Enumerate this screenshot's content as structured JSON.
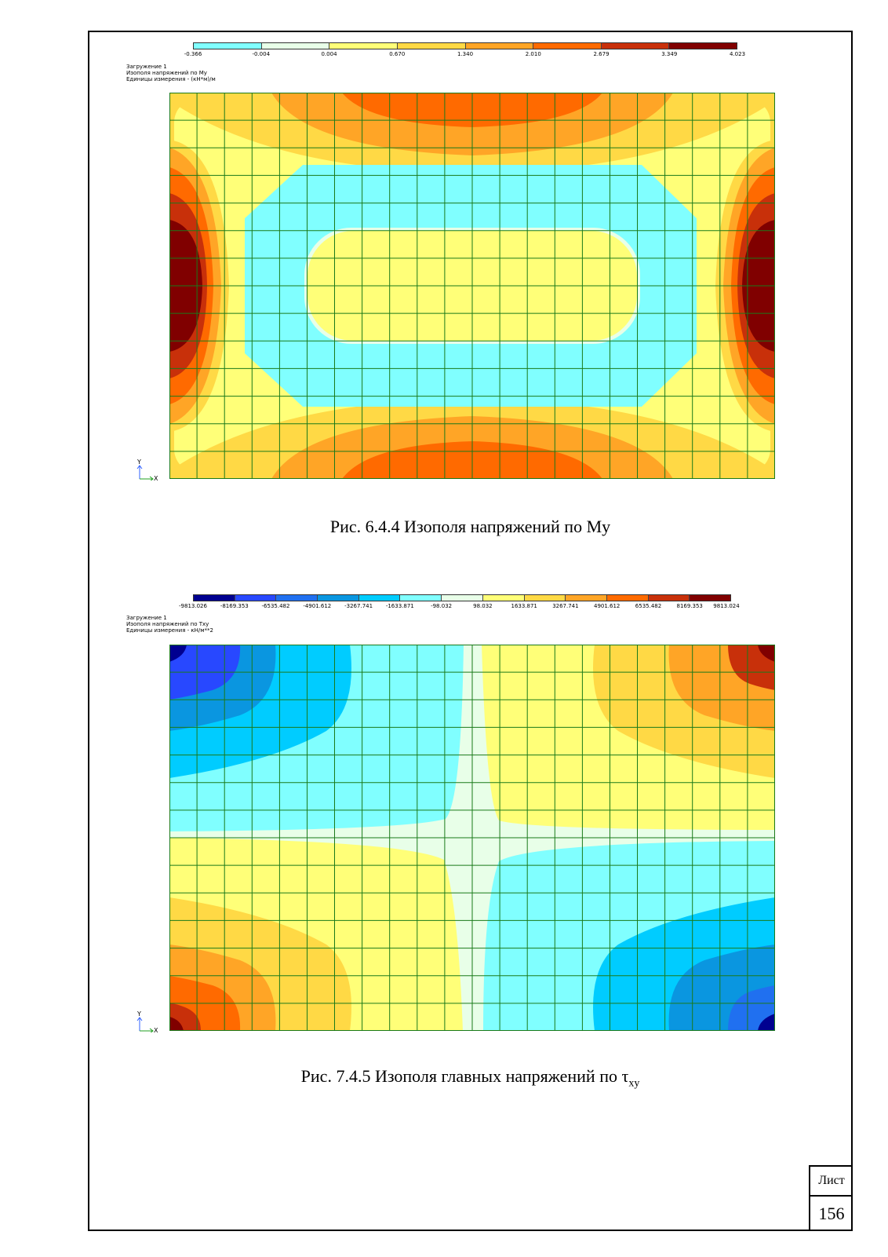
{
  "figure1": {
    "legend_ticks": [
      "-0.366",
      "-0.004",
      "0.004",
      "0.670",
      "1.340",
      "2.010",
      "2.679",
      "3.349",
      "4.023"
    ],
    "legend_colors": [
      "#80ffff",
      "#e8ffe8",
      "#ffff78",
      "#ffd945",
      "#ffa526",
      "#ff6a00",
      "#c8300a",
      "#800000"
    ],
    "info": [
      "Загружение 1",
      "Изополя напряжений по My",
      "Единицы измерения - (кН*м)/м"
    ],
    "axis_y": "Y",
    "axis_x": "X",
    "caption": "Рис. 6.4.4 Изополя напряжений по My"
  },
  "figure2": {
    "legend_ticks": [
      "-9813.026",
      "-8169.353",
      "-6535.482",
      "-4901.612",
      "-3267.741",
      "-1633.871",
      "-98.032",
      "98.032",
      "1633.871",
      "3267.741",
      "4901.612",
      "6535.482",
      "8169.353",
      "9813.024"
    ],
    "legend_colors": [
      "#000090",
      "#2848ff",
      "#2070f0",
      "#0a96e0",
      "#00ccff",
      "#80ffff",
      "#e8ffe8",
      "#ffff78",
      "#ffd945",
      "#ffa526",
      "#ff6a00",
      "#c8300a",
      "#800000"
    ],
    "info": [
      "Загружение 1",
      "Изополя напряжений по Txy",
      "Единицы измерения - кН/м**2"
    ],
    "axis_y": "Y",
    "axis_x": "X",
    "caption_main": "Рис. 7.4.5 Изополя главных напряжений по τ",
    "caption_sub": "xy"
  },
  "stamp": {
    "label": "Лист",
    "page_number": "156"
  }
}
